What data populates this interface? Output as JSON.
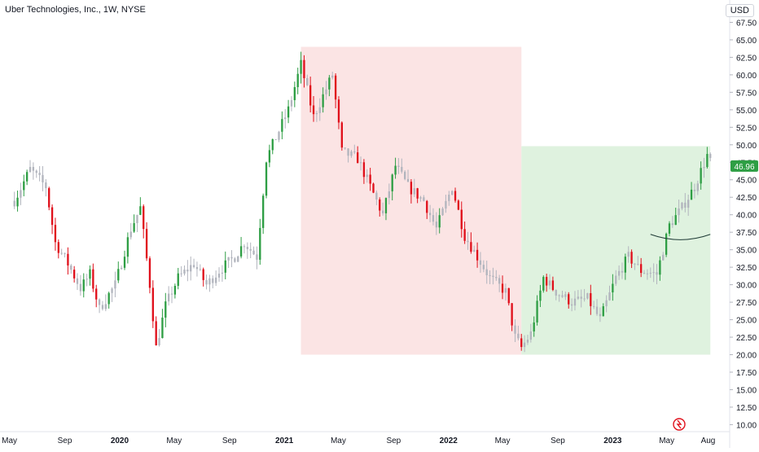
{
  "header": {
    "title": "Uber Technologies, Inc., 1W, NYSE",
    "currency": "USD"
  },
  "colors": {
    "up": "#26a69a",
    "up_strong": "#2e9e44",
    "down": "#f23645",
    "down_strong": "#e0101b",
    "neutral": "#b2b5be",
    "decline_zone": "#fbe4e4",
    "rally_zone": "#dff2df",
    "last_price_badge": "#2e9e44",
    "grid": "#f0f3fa",
    "axis_text": "#131722"
  },
  "chart_data": {
    "type": "candlestick",
    "symbol": "Uber Technologies, Inc.",
    "interval": "1W",
    "exchange": "NYSE",
    "last_price": "46.96",
    "y_ticks": [
      "10.00",
      "12.50",
      "15.00",
      "17.50",
      "20.00",
      "22.50",
      "25.00",
      "27.50",
      "30.00",
      "32.50",
      "35.00",
      "37.50",
      "40.00",
      "42.50",
      "45.00",
      "47.50",
      "50.00",
      "52.50",
      "55.00",
      "57.50",
      "60.00",
      "62.50",
      "65.00",
      "67.50"
    ],
    "ylim": [
      9.0,
      68.6
    ],
    "x_ticks": [
      {
        "label": "May",
        "date": "2019-05-01"
      },
      {
        "label": "Sep",
        "date": "2019-09-01"
      },
      {
        "label": "2020",
        "date": "2020-01-01"
      },
      {
        "label": "May",
        "date": "2020-05-01"
      },
      {
        "label": "Sep",
        "date": "2020-09-01"
      },
      {
        "label": "2021",
        "date": "2021-01-01"
      },
      {
        "label": "May",
        "date": "2021-05-01"
      },
      {
        "label": "Sep",
        "date": "2021-09-01"
      },
      {
        "label": "2022",
        "date": "2022-01-01"
      },
      {
        "label": "May",
        "date": "2022-05-01"
      },
      {
        "label": "Sep",
        "date": "2022-09-01"
      },
      {
        "label": "2023",
        "date": "2023-01-01"
      },
      {
        "label": "May",
        "date": "2023-05-01"
      },
      {
        "label": "Aug",
        "date": "2023-08-01"
      }
    ],
    "xlim": [
      "2019-04-10",
      "2023-09-18"
    ],
    "zones": [
      {
        "start": "2021-02-07",
        "end": "2022-06-12",
        "low": 20.0,
        "high": 64.0,
        "fill": "#fbe4e4"
      },
      {
        "start": "2022-06-12",
        "end": "2023-08-06",
        "low": 20.0,
        "high": 49.8,
        "fill": "#dff2df"
      }
    ],
    "curve": {
      "start": "2023-03-26",
      "end": "2023-08-06",
      "y_start": 37.2,
      "y_mid": 36.6,
      "y_end": 37.2
    },
    "anchors": [
      [
        "2019-05-12",
        42.0
      ],
      [
        "2019-06-16",
        46.5
      ],
      [
        "2019-07-21",
        44.0
      ],
      [
        "2019-08-11",
        36.0
      ],
      [
        "2019-09-08",
        33.0
      ],
      [
        "2019-10-06",
        29.5
      ],
      [
        "2019-10-27",
        31.5
      ],
      [
        "2019-11-17",
        26.5
      ],
      [
        "2019-12-22",
        30.0
      ],
      [
        "2020-01-26",
        38.0
      ],
      [
        "2020-02-16",
        41.0
      ],
      [
        "2020-03-08",
        30.0
      ],
      [
        "2020-03-22",
        21.0
      ],
      [
        "2020-04-12",
        27.0
      ],
      [
        "2020-05-10",
        31.0
      ],
      [
        "2020-06-14",
        33.0
      ],
      [
        "2020-07-12",
        30.0
      ],
      [
        "2020-08-09",
        32.0
      ],
      [
        "2020-09-13",
        34.0
      ],
      [
        "2020-10-04",
        36.0
      ],
      [
        "2020-11-01",
        34.0
      ],
      [
        "2020-11-22",
        48.0
      ],
      [
        "2020-12-20",
        52.0
      ],
      [
        "2021-01-10",
        55.0
      ],
      [
        "2021-02-07",
        61.5
      ],
      [
        "2021-03-07",
        54.0
      ],
      [
        "2021-04-04",
        58.0
      ],
      [
        "2021-04-18",
        60.0
      ],
      [
        "2021-05-09",
        49.0
      ],
      [
        "2021-06-13",
        48.0
      ],
      [
        "2021-07-11",
        44.0
      ],
      [
        "2021-08-08",
        40.0
      ],
      [
        "2021-09-05",
        47.0
      ],
      [
        "2021-10-03",
        44.0
      ],
      [
        "2021-11-07",
        42.0
      ],
      [
        "2021-12-05",
        38.0
      ],
      [
        "2022-01-09",
        44.0
      ],
      [
        "2022-02-06",
        37.0
      ],
      [
        "2022-03-06",
        34.0
      ],
      [
        "2022-04-03",
        31.0
      ],
      [
        "2022-05-08",
        29.0
      ],
      [
        "2022-05-29",
        22.5
      ],
      [
        "2022-06-12",
        21.0
      ],
      [
        "2022-07-03",
        23.0
      ],
      [
        "2022-07-31",
        31.0
      ],
      [
        "2022-08-28",
        29.0
      ],
      [
        "2022-10-02",
        27.5
      ],
      [
        "2022-11-06",
        28.0
      ],
      [
        "2022-12-04",
        25.0
      ],
      [
        "2023-01-08",
        31.0
      ],
      [
        "2023-02-05",
        34.0
      ],
      [
        "2023-03-05",
        32.0
      ],
      [
        "2023-04-09",
        31.5
      ],
      [
        "2023-05-07",
        38.5
      ],
      [
        "2023-06-04",
        41.0
      ],
      [
        "2023-07-02",
        44.0
      ],
      [
        "2023-07-30",
        48.5
      ],
      [
        "2023-08-06",
        47.5
      ]
    ]
  }
}
